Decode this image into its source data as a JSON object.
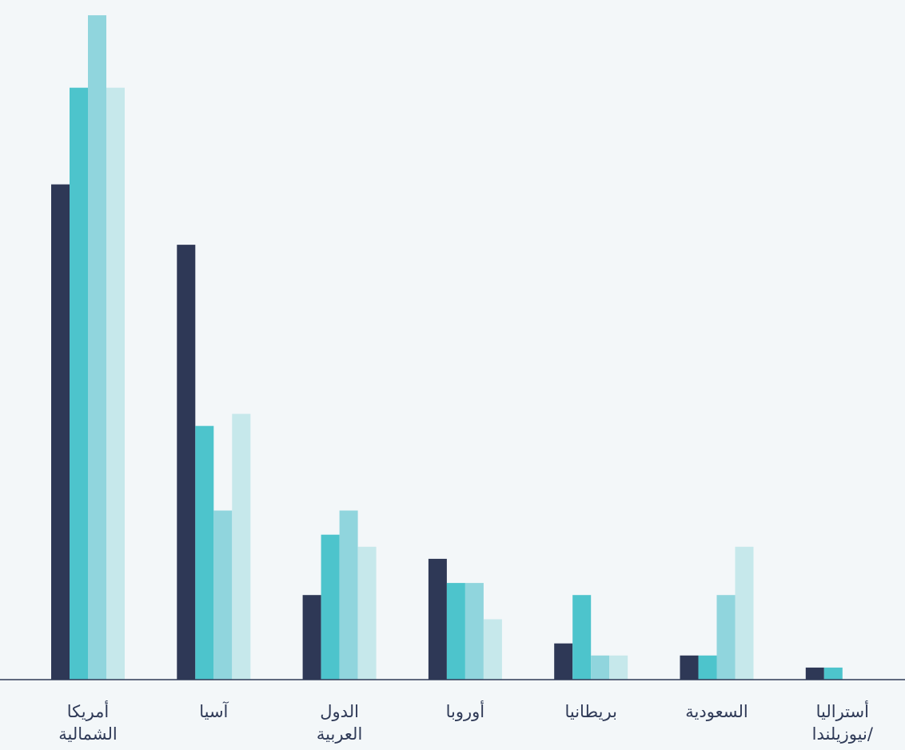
{
  "chart_data": {
    "type": "bar",
    "title": "",
    "xlabel": "",
    "ylabel": "",
    "categories": [
      [
        "أمريكا",
        "الشمالية"
      ],
      [
        "آسيا"
      ],
      [
        "الدول",
        "العربية"
      ],
      [
        "أوروبا"
      ],
      [
        "بريطانيا"
      ],
      [
        "السعودية"
      ],
      [
        "أستراليا",
        "/نيوزيلندا"
      ]
    ],
    "series": [
      {
        "values": [
          41,
          36,
          7,
          10,
          3,
          2,
          1
        ]
      },
      {
        "values": [
          49,
          21,
          12,
          8,
          7,
          2,
          1
        ]
      },
      {
        "values": [
          55,
          14,
          14,
          8,
          2,
          7,
          0
        ]
      },
      {
        "values": [
          49,
          22,
          11,
          5,
          2,
          11,
          0
        ]
      }
    ],
    "ylim": [
      0,
      55.6
    ],
    "grid": false,
    "legend": "none",
    "colors": [
      "#2e3856",
      "#4dc4cc",
      "#90d5dd",
      "#c6e8eb"
    ],
    "axis_color": "#2f3a57",
    "label_color": "#2f3a57",
    "background": "#f3f7f9"
  }
}
